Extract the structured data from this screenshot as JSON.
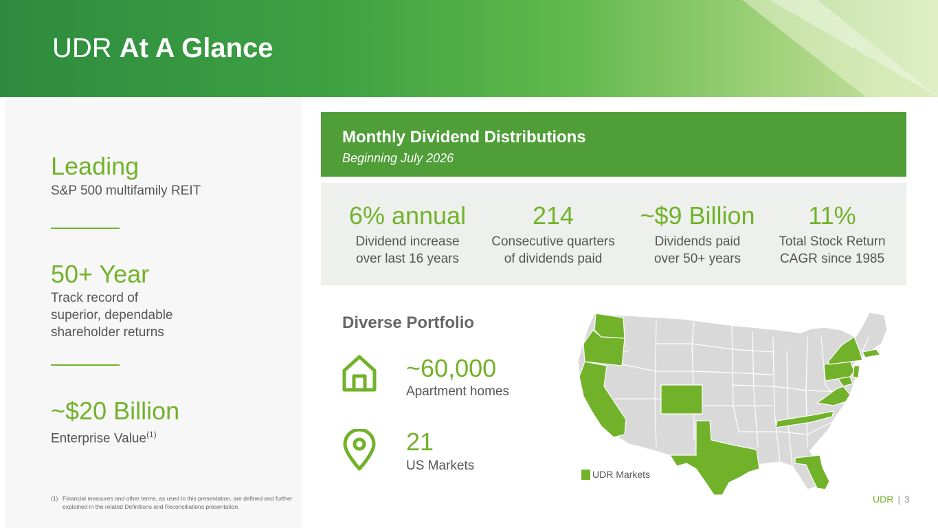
{
  "header": {
    "title_light": "UDR ",
    "title_bold": "At A Glance"
  },
  "left": {
    "stats": [
      {
        "value": "Leading",
        "lines": [
          "S&P 500 multifamily REIT"
        ]
      },
      {
        "value": "50+ Year",
        "lines": [
          "Track record of",
          "superior, dependable",
          "shareholder returns"
        ]
      },
      {
        "value": "~$20 Billion",
        "label": "Enterprise Value",
        "sup": "(1)"
      }
    ],
    "footnote": {
      "num": "(1)",
      "text": "Financial measures and other terms, as used in this presentation, are defined and further explained in the related Definitions and Reconciliations presentation."
    }
  },
  "dividend": {
    "title": "Monthly Dividend Distributions",
    "subtitle": "Beginning July 2026",
    "stats": [
      {
        "value": "6% annual",
        "line1": "Dividend increase",
        "line2": "over last 16 years"
      },
      {
        "value": "214",
        "line1": "Consecutive quarters",
        "line2": "of dividends paid"
      },
      {
        "value": "~$9 Billion",
        "line1": "Dividends paid",
        "line2": "over 50+ years"
      },
      {
        "value": "11%",
        "line1": "Total Stock Return",
        "line2": "CAGR since 1985"
      }
    ]
  },
  "portfolio": {
    "title": "Diverse Portfolio",
    "homes_value": "~60,000",
    "homes_label": "Apartment homes",
    "markets_value": "21",
    "markets_label": "US Markets",
    "icons": [
      "home-icon",
      "location-pin-icon"
    ]
  },
  "map": {
    "legend": "UDR Markets",
    "highlight_color": "#72b22a",
    "base_color": "#d9d9d9",
    "highlighted_states": [
      "WA",
      "OR",
      "CA",
      "CO",
      "TX",
      "TN",
      "FL",
      "VA",
      "MD",
      "PA",
      "NY",
      "MA",
      "NJ",
      "DC"
    ]
  },
  "footer": {
    "brand": "UDR",
    "sep": "|",
    "page": "3"
  },
  "colors": {
    "accent": "#72b22a",
    "banner": "#4f9e38",
    "header_dark": "#2e8b3e"
  }
}
